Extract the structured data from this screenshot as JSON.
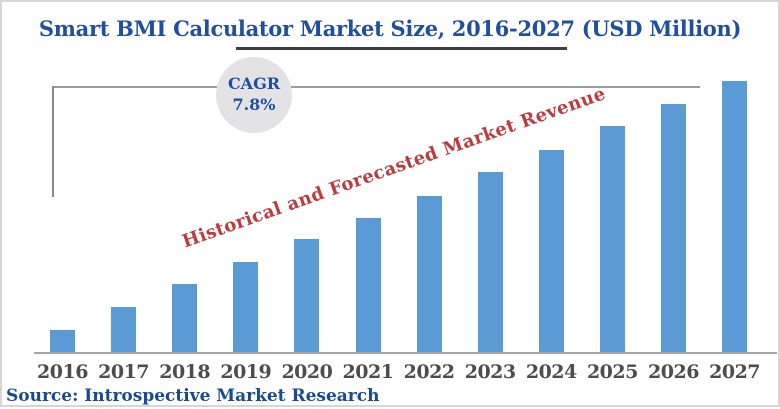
{
  "page": {
    "background_color": "#ffffff",
    "border_color": "#d6d6d6"
  },
  "header": {
    "title": "Smart BMI Calculator Market Size, 2016-2027 (USD Million)",
    "title_color": "#1f4fa0",
    "underline_color": "#3f3f3f"
  },
  "cagr_badge": {
    "label": "CAGR",
    "value": "7.8%",
    "text_color": "#1f4fa0",
    "fill_color": "#e3e3e5"
  },
  "annotation": {
    "text": "Historical and Forecasted Market Revenue",
    "color": "#bd3a3e"
  },
  "source": {
    "text": "Source: Introspective Market Research",
    "color": "#174a90"
  },
  "chart_data": {
    "type": "bar",
    "title": "Smart BMI Calculator Market Size, 2016-2027 (USD Million)",
    "subtitle": "Historical and Forecasted Market Revenue",
    "cagr_percent": 7.8,
    "categories": [
      "2016",
      "2017",
      "2018",
      "2019",
      "2020",
      "2021",
      "2022",
      "2023",
      "2024",
      "2025",
      "2026",
      "2027"
    ],
    "values": [
      24,
      47,
      70,
      92,
      115,
      136,
      158,
      182,
      204,
      228,
      250,
      273
    ],
    "units": "relative bar height; no numeric y-axis values are shown in the image",
    "xlabel": "",
    "ylabel": "",
    "ylim": null,
    "grid": false,
    "legend": false,
    "bar_color": "#5b9bd5",
    "axis_line_color": "#a6a6a6",
    "tick_label_color": "#4d4d4d"
  }
}
